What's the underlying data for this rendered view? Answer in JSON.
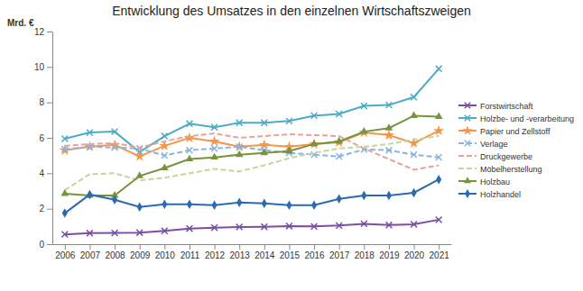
{
  "chart_data": {
    "type": "line",
    "title": "Entwicklung des Umsatzes in den einzelnen Wirtschaftszweigen",
    "y_label": "Mrd. €",
    "categories": [
      "2006",
      "2007",
      "2008",
      "2009",
      "2010",
      "2011",
      "2012",
      "2013",
      "2014",
      "2015",
      "2016",
      "2017",
      "2018",
      "2019",
      "2020",
      "2021"
    ],
    "series": [
      {
        "name": "Forstwirtschaft",
        "color": "#7a4ea3",
        "marker": "x",
        "line_style": "solid",
        "values": [
          0.55,
          0.62,
          0.63,
          0.65,
          0.75,
          0.88,
          0.93,
          0.97,
          0.98,
          1.02,
          1.0,
          1.05,
          1.15,
          1.08,
          1.12,
          1.38
        ]
      },
      {
        "name": "Holzbe- und -verarbeitung",
        "color": "#4bacc6",
        "marker": "x",
        "line_style": "solid",
        "values": [
          5.95,
          6.3,
          6.35,
          5.2,
          6.1,
          6.8,
          6.6,
          6.85,
          6.85,
          6.95,
          7.25,
          7.35,
          7.8,
          7.85,
          8.3,
          9.9
        ]
      },
      {
        "name": "Papier und Zellstoff",
        "color": "#f79646",
        "marker": "star",
        "line_style": "solid",
        "values": [
          5.3,
          5.5,
          5.6,
          4.95,
          5.55,
          6.0,
          5.8,
          5.5,
          5.6,
          5.5,
          5.65,
          5.75,
          6.3,
          6.15,
          5.7,
          6.4
        ]
      },
      {
        "name": "Verlage",
        "color": "#8db3e2",
        "marker": "x",
        "line_style": "dashed",
        "values": [
          5.35,
          5.5,
          5.45,
          5.4,
          5.0,
          5.3,
          5.4,
          5.5,
          5.3,
          5.15,
          5.05,
          4.95,
          5.35,
          5.3,
          5.05,
          4.9
        ]
      },
      {
        "name": "Druckgewerbe",
        "color": "#e6a39b",
        "line_style": "dashed",
        "values": [
          5.55,
          5.65,
          5.7,
          5.45,
          5.8,
          6.1,
          6.25,
          6.0,
          6.1,
          6.2,
          6.15,
          6.1,
          5.4,
          4.8,
          4.2,
          4.45
        ]
      },
      {
        "name": "Möbelherstellung",
        "color": "#c3d69b",
        "line_style": "dashed",
        "values": [
          3.05,
          3.95,
          4.0,
          3.6,
          3.75,
          4.0,
          4.25,
          4.1,
          4.45,
          4.85,
          5.15,
          5.4,
          5.5,
          5.65,
          5.9,
          6.1
        ]
      },
      {
        "name": "Holzbau",
        "color": "#77933c",
        "marker": "triangle",
        "line_style": "solid",
        "values": [
          2.85,
          2.75,
          2.75,
          3.85,
          4.3,
          4.8,
          4.9,
          5.05,
          5.15,
          5.25,
          5.65,
          5.8,
          6.35,
          6.55,
          7.25,
          7.2
        ]
      },
      {
        "name": "Holzhandel",
        "color": "#2a6bb0",
        "marker": "diamond",
        "line_style": "solid",
        "values": [
          1.75,
          2.8,
          2.5,
          2.1,
          2.25,
          2.25,
          2.2,
          2.35,
          2.3,
          2.2,
          2.2,
          2.55,
          2.75,
          2.75,
          2.9,
          3.65
        ]
      }
    ],
    "ylim": [
      0,
      12
    ],
    "yticks": [
      0,
      2,
      4,
      6,
      8,
      10,
      12
    ],
    "grid": false,
    "legend": "right"
  }
}
